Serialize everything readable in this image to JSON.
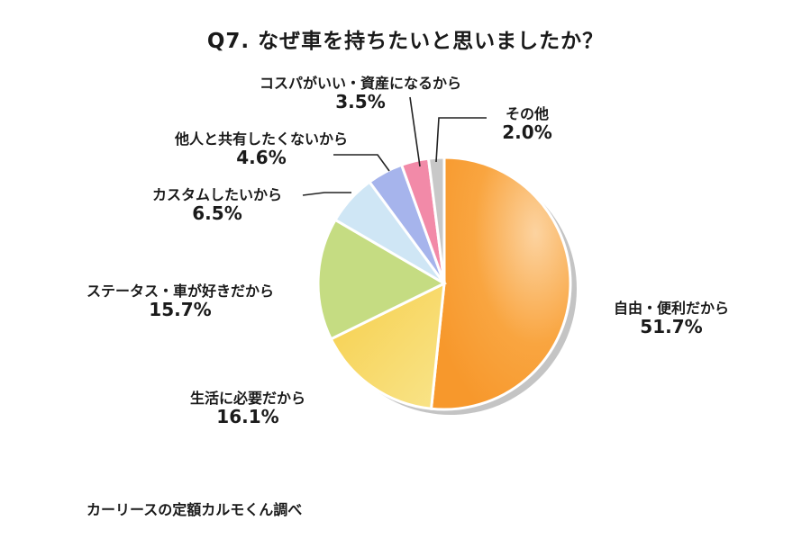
{
  "title": "Q7. なぜ車を持ちたいと思いましたか？",
  "source": "カーリースの定額カルモくん調べ",
  "labels": {
    "free": {
      "name": "自由・便利だから",
      "pct": "51.7%"
    },
    "need": {
      "name": "生活に必要だから",
      "pct": "16.1%"
    },
    "status": {
      "name": "ステータス・車が好きだから",
      "pct": "15.7%"
    },
    "custom": {
      "name": "カスタムしたいから",
      "pct": "6.5%"
    },
    "share": {
      "name": "他人と共有したくないから",
      "pct": "4.6%"
    },
    "cospa": {
      "name": "コスパがいい・資産になるから",
      "pct": "3.5%"
    },
    "other": {
      "name": "その他",
      "pct": "2.0%"
    }
  },
  "chart_data": {
    "type": "pie",
    "title": "Q7. なぜ車を持ちたいと思いましたか？",
    "categories": [
      "自由・便利だから",
      "生活に必要だから",
      "ステータス・車が好きだから",
      "カスタムしたいから",
      "他人と共有したくないから",
      "コスパがいい・資産になるから",
      "その他"
    ],
    "values": [
      51.7,
      16.1,
      15.7,
      6.5,
      4.6,
      3.5,
      2.0
    ],
    "colors": [
      "#f9a540",
      "#f7d25a",
      "#c5dc82",
      "#cfe6f5",
      "#a6b4ec",
      "#f28aa8",
      "#c8c8c8"
    ],
    "start_angle": "12 o'clock",
    "direction": "clockwise",
    "legend": "none (direct labels)",
    "annotation": "カーリースの定額カルモくん調べ"
  }
}
